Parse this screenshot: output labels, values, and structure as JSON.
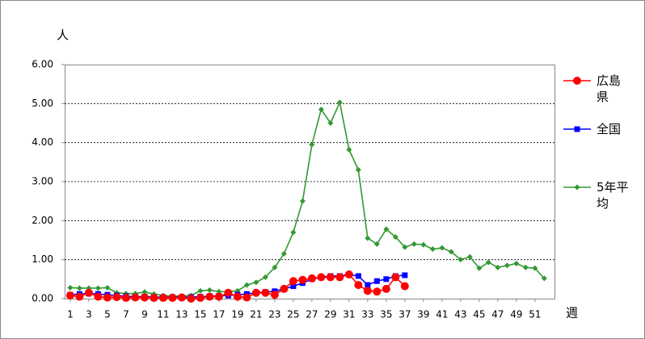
{
  "chart_data": {
    "type": "line",
    "y_unit_label": "人",
    "x_unit_label": "週",
    "x": [
      1,
      2,
      3,
      4,
      5,
      6,
      7,
      8,
      9,
      10,
      11,
      12,
      13,
      14,
      15,
      16,
      17,
      18,
      19,
      20,
      21,
      22,
      23,
      24,
      25,
      26,
      27,
      28,
      29,
      30,
      31,
      32,
      33,
      34,
      35,
      36,
      37,
      38,
      39,
      40,
      41,
      42,
      43,
      44,
      45,
      46,
      47,
      48,
      49,
      50,
      51,
      52
    ],
    "xlim": [
      0.4,
      53.1
    ],
    "xticks": [
      1,
      3,
      5,
      7,
      9,
      11,
      13,
      15,
      17,
      19,
      21,
      23,
      25,
      27,
      29,
      31,
      33,
      35,
      37,
      39,
      41,
      43,
      45,
      47,
      49,
      51
    ],
    "ylim": [
      0,
      6
    ],
    "yticks": [
      {
        "value": 0,
        "label": "0.00"
      },
      {
        "value": 1,
        "label": "1.00"
      },
      {
        "value": 2,
        "label": "2.00"
      },
      {
        "value": 3,
        "label": "3.00"
      },
      {
        "value": 4,
        "label": "4.00"
      },
      {
        "value": 5,
        "label": "5.00"
      },
      {
        "value": 6,
        "label": "6.00"
      }
    ],
    "grid": true,
    "series": [
      {
        "name": "広島県",
        "color": "#ff0000",
        "marker": "circle",
        "values": [
          0.08,
          0.05,
          0.15,
          0.05,
          0.03,
          0.04,
          0.02,
          0.03,
          0.03,
          0.02,
          0.02,
          0.02,
          0.03,
          0,
          0.02,
          0.05,
          0.05,
          0.15,
          0.05,
          0.03,
          0.15,
          0.15,
          0.1,
          0.25,
          0.45,
          0.48,
          0.52,
          0.55,
          0.55,
          0.55,
          0.62,
          0.35,
          0.2,
          0.18,
          0.25,
          0.55,
          0.32,
          null,
          null,
          null,
          null,
          null,
          null,
          null,
          null,
          null,
          null,
          null,
          null,
          null,
          null,
          null
        ]
      },
      {
        "name": "全国",
        "color": "#0000ff",
        "marker": "square",
        "values": [
          0.1,
          0.12,
          0.13,
          0.12,
          0.1,
          0.08,
          0.06,
          0.05,
          0.05,
          0.04,
          0.04,
          0.04,
          0.04,
          0.04,
          0.05,
          0.06,
          0.07,
          0.08,
          0.1,
          0.12,
          0.15,
          0.17,
          0.19,
          0.25,
          0.32,
          0.4,
          0.5,
          0.55,
          0.58,
          0.58,
          0.62,
          0.58,
          0.35,
          0.45,
          0.5,
          0.58,
          0.6,
          null,
          null,
          null,
          null,
          null,
          null,
          null,
          null,
          null,
          null,
          null,
          null,
          null,
          null,
          null
        ]
      },
      {
        "name": "5年平均",
        "color": "#339933",
        "marker": "diamond",
        "values": [
          0.28,
          0.27,
          0.27,
          0.27,
          0.28,
          0.15,
          0.13,
          0.13,
          0.17,
          0.12,
          0.08,
          0.07,
          0.07,
          0.08,
          0.2,
          0.22,
          0.18,
          0.18,
          0.2,
          0.35,
          0.42,
          0.55,
          0.8,
          1.15,
          1.7,
          2.5,
          3.95,
          4.85,
          4.5,
          5.03,
          3.82,
          3.3,
          1.55,
          1.4,
          1.78,
          1.58,
          1.32,
          1.4,
          1.38,
          1.27,
          1.3,
          1.2,
          1,
          1.07,
          0.78,
          0.93,
          0.8,
          0.85,
          0.9,
          0.8,
          0.78,
          0.52
        ]
      }
    ]
  }
}
